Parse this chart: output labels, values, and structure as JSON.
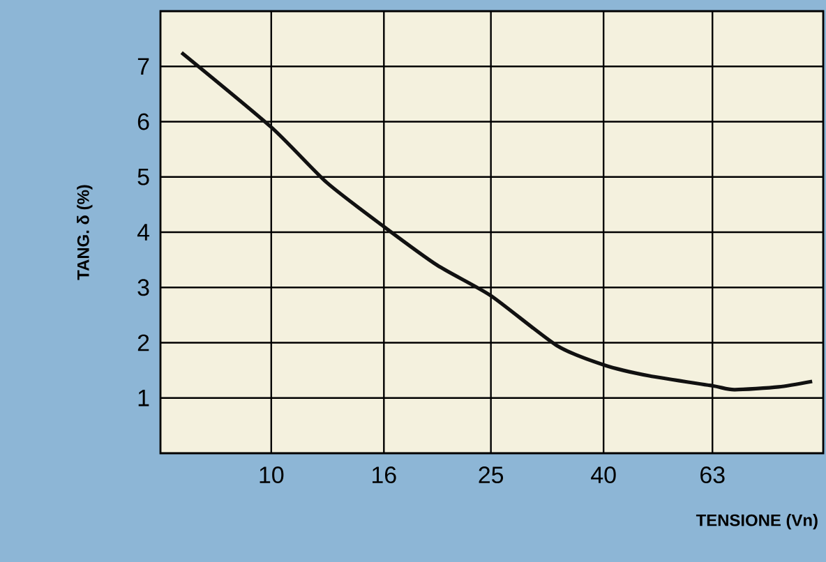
{
  "chart_data": {
    "type": "line",
    "xlabel": "TENSIONE (Vn)",
    "ylabel": "TANG. δ (%)",
    "log": "x",
    "xlim": [
      6.3,
      100
    ],
    "xticks": [
      10,
      16,
      25,
      40,
      63
    ],
    "ylim": [
      0,
      8
    ],
    "yticks": [
      1,
      2,
      3,
      4,
      5,
      6,
      7
    ],
    "grid": true,
    "marker": "none",
    "line_style": "solid",
    "series": [
      {
        "color": "#111111",
        "x": [
          6.88,
          10,
          12.6,
          16,
          20,
          25,
          32.9,
          40,
          48.4,
          63,
          69,
          83,
          95.5
        ],
        "values": [
          7.25,
          5.9,
          4.9,
          4.1,
          3.4,
          2.85,
          1.95,
          1.6,
          1.4,
          1.22,
          1.15,
          1.2,
          1.3
        ]
      }
    ]
  }
}
